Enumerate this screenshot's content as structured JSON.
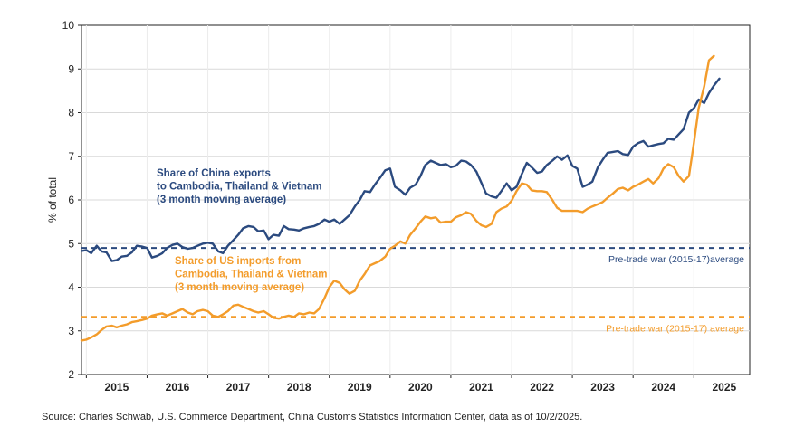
{
  "chart_data": {
    "type": "line",
    "ylabel": "% of total",
    "xlabel": "",
    "ylim": [
      2,
      10
    ],
    "yticks": [
      "2",
      "3",
      "4",
      "5",
      "6",
      "7",
      "8",
      "9",
      "10"
    ],
    "year_labels": [
      "2015",
      "2016",
      "2017",
      "2018",
      "2019",
      "2020",
      "2021",
      "2022",
      "2023",
      "2024",
      "2025"
    ],
    "grid": true,
    "series": [
      {
        "name": "Share of China exports to Cambodia, Thailand & Vietnam (3 month moving average)",
        "color": "#2b4a7f",
        "label_lines": [
          "Share of China exports",
          "to Cambodia, Thailand & Vietnam",
          "(3 month moving average)"
        ],
        "points": [
          [
            2014.92,
            4.83
          ],
          [
            2015.0,
            4.85
          ],
          [
            2015.08,
            4.78
          ],
          [
            2015.17,
            4.95
          ],
          [
            2015.25,
            4.82
          ],
          [
            2015.33,
            4.8
          ],
          [
            2015.42,
            4.6
          ],
          [
            2015.5,
            4.62
          ],
          [
            2015.58,
            4.7
          ],
          [
            2015.67,
            4.72
          ],
          [
            2015.75,
            4.8
          ],
          [
            2015.83,
            4.95
          ],
          [
            2015.92,
            4.93
          ],
          [
            2016.0,
            4.9
          ],
          [
            2016.08,
            4.68
          ],
          [
            2016.17,
            4.72
          ],
          [
            2016.25,
            4.78
          ],
          [
            2016.33,
            4.9
          ],
          [
            2016.42,
            4.97
          ],
          [
            2016.5,
            5.0
          ],
          [
            2016.58,
            4.92
          ],
          [
            2016.67,
            4.88
          ],
          [
            2016.75,
            4.9
          ],
          [
            2016.83,
            4.95
          ],
          [
            2016.92,
            5.0
          ],
          [
            2017.0,
            5.02
          ],
          [
            2017.08,
            5.0
          ],
          [
            2017.17,
            4.82
          ],
          [
            2017.25,
            4.78
          ],
          [
            2017.33,
            4.95
          ],
          [
            2017.42,
            5.08
          ],
          [
            2017.5,
            5.2
          ],
          [
            2017.58,
            5.35
          ],
          [
            2017.67,
            5.4
          ],
          [
            2017.75,
            5.38
          ],
          [
            2017.83,
            5.28
          ],
          [
            2017.92,
            5.3
          ],
          [
            2018.0,
            5.1
          ],
          [
            2018.08,
            5.2
          ],
          [
            2018.17,
            5.18
          ],
          [
            2018.25,
            5.4
          ],
          [
            2018.33,
            5.33
          ],
          [
            2018.42,
            5.32
          ],
          [
            2018.5,
            5.3
          ],
          [
            2018.58,
            5.35
          ],
          [
            2018.67,
            5.38
          ],
          [
            2018.75,
            5.4
          ],
          [
            2018.83,
            5.45
          ],
          [
            2018.92,
            5.55
          ],
          [
            2019.0,
            5.5
          ],
          [
            2019.08,
            5.55
          ],
          [
            2019.17,
            5.45
          ],
          [
            2019.25,
            5.55
          ],
          [
            2019.33,
            5.65
          ],
          [
            2019.42,
            5.85
          ],
          [
            2019.5,
            6.0
          ],
          [
            2019.58,
            6.2
          ],
          [
            2019.67,
            6.18
          ],
          [
            2019.75,
            6.35
          ],
          [
            2019.83,
            6.5
          ],
          [
            2019.92,
            6.68
          ],
          [
            2020.0,
            6.72
          ],
          [
            2020.08,
            6.3
          ],
          [
            2020.17,
            6.22
          ],
          [
            2020.25,
            6.12
          ],
          [
            2020.33,
            6.28
          ],
          [
            2020.42,
            6.35
          ],
          [
            2020.5,
            6.55
          ],
          [
            2020.58,
            6.8
          ],
          [
            2020.67,
            6.9
          ],
          [
            2020.75,
            6.85
          ],
          [
            2020.83,
            6.8
          ],
          [
            2020.92,
            6.82
          ],
          [
            2021.0,
            6.75
          ],
          [
            2021.08,
            6.78
          ],
          [
            2021.17,
            6.9
          ],
          [
            2021.25,
            6.88
          ],
          [
            2021.33,
            6.8
          ],
          [
            2021.42,
            6.65
          ],
          [
            2021.5,
            6.4
          ],
          [
            2021.58,
            6.15
          ],
          [
            2021.67,
            6.08
          ],
          [
            2021.75,
            6.05
          ],
          [
            2021.83,
            6.2
          ],
          [
            2021.92,
            6.38
          ],
          [
            2022.0,
            6.22
          ],
          [
            2022.08,
            6.3
          ],
          [
            2022.17,
            6.6
          ],
          [
            2022.25,
            6.85
          ],
          [
            2022.33,
            6.75
          ],
          [
            2022.42,
            6.62
          ],
          [
            2022.5,
            6.65
          ],
          [
            2022.58,
            6.8
          ],
          [
            2022.67,
            6.9
          ],
          [
            2022.75,
            7.0
          ],
          [
            2022.83,
            6.92
          ],
          [
            2022.92,
            7.02
          ],
          [
            2023.0,
            6.78
          ],
          [
            2023.08,
            6.72
          ],
          [
            2023.17,
            6.3
          ],
          [
            2023.25,
            6.35
          ],
          [
            2023.33,
            6.42
          ],
          [
            2023.42,
            6.75
          ],
          [
            2023.5,
            6.92
          ],
          [
            2023.58,
            7.08
          ],
          [
            2023.67,
            7.1
          ],
          [
            2023.75,
            7.12
          ],
          [
            2023.83,
            7.05
          ],
          [
            2023.92,
            7.03
          ],
          [
            2024.0,
            7.22
          ],
          [
            2024.08,
            7.3
          ],
          [
            2024.17,
            7.35
          ],
          [
            2024.25,
            7.22
          ],
          [
            2024.33,
            7.25
          ],
          [
            2024.42,
            7.28
          ],
          [
            2024.5,
            7.3
          ],
          [
            2024.58,
            7.4
          ],
          [
            2024.67,
            7.38
          ],
          [
            2024.75,
            7.5
          ],
          [
            2024.83,
            7.62
          ],
          [
            2024.92,
            8.0
          ],
          [
            2025.0,
            8.1
          ],
          [
            2025.08,
            8.3
          ],
          [
            2025.17,
            8.22
          ],
          [
            2025.25,
            8.45
          ],
          [
            2025.33,
            8.62
          ],
          [
            2025.42,
            8.78
          ]
        ]
      },
      {
        "name": "Share of US imports from Cambodia, Thailand & Vietnam (3 month moving average)",
        "color": "#f39c2b",
        "label_lines": [
          "Share of US imports from",
          "Cambodia, Thailand & Vietnam",
          "(3 month moving average)"
        ],
        "points": [
          [
            2014.92,
            2.78
          ],
          [
            2015.0,
            2.8
          ],
          [
            2015.08,
            2.85
          ],
          [
            2015.17,
            2.92
          ],
          [
            2015.25,
            3.02
          ],
          [
            2015.33,
            3.1
          ],
          [
            2015.42,
            3.12
          ],
          [
            2015.5,
            3.08
          ],
          [
            2015.58,
            3.12
          ],
          [
            2015.67,
            3.15
          ],
          [
            2015.75,
            3.2
          ],
          [
            2015.83,
            3.22
          ],
          [
            2015.92,
            3.25
          ],
          [
            2016.0,
            3.28
          ],
          [
            2016.08,
            3.35
          ],
          [
            2016.17,
            3.38
          ],
          [
            2016.25,
            3.4
          ],
          [
            2016.33,
            3.35
          ],
          [
            2016.42,
            3.4
          ],
          [
            2016.5,
            3.45
          ],
          [
            2016.58,
            3.5
          ],
          [
            2016.67,
            3.42
          ],
          [
            2016.75,
            3.38
          ],
          [
            2016.83,
            3.45
          ],
          [
            2016.92,
            3.48
          ],
          [
            2017.0,
            3.45
          ],
          [
            2017.08,
            3.35
          ],
          [
            2017.17,
            3.32
          ],
          [
            2017.25,
            3.38
          ],
          [
            2017.33,
            3.45
          ],
          [
            2017.42,
            3.58
          ],
          [
            2017.5,
            3.6
          ],
          [
            2017.58,
            3.55
          ],
          [
            2017.67,
            3.5
          ],
          [
            2017.75,
            3.45
          ],
          [
            2017.83,
            3.42
          ],
          [
            2017.92,
            3.45
          ],
          [
            2018.0,
            3.38
          ],
          [
            2018.08,
            3.3
          ],
          [
            2018.17,
            3.28
          ],
          [
            2018.25,
            3.32
          ],
          [
            2018.33,
            3.35
          ],
          [
            2018.42,
            3.32
          ],
          [
            2018.5,
            3.4
          ],
          [
            2018.58,
            3.38
          ],
          [
            2018.67,
            3.42
          ],
          [
            2018.75,
            3.4
          ],
          [
            2018.83,
            3.5
          ],
          [
            2018.92,
            3.75
          ],
          [
            2019.0,
            4.0
          ],
          [
            2019.08,
            4.15
          ],
          [
            2019.17,
            4.1
          ],
          [
            2019.25,
            3.95
          ],
          [
            2019.33,
            3.85
          ],
          [
            2019.42,
            3.92
          ],
          [
            2019.5,
            4.15
          ],
          [
            2019.58,
            4.3
          ],
          [
            2019.67,
            4.5
          ],
          [
            2019.75,
            4.55
          ],
          [
            2019.83,
            4.6
          ],
          [
            2019.92,
            4.7
          ],
          [
            2020.0,
            4.88
          ],
          [
            2020.08,
            4.95
          ],
          [
            2020.17,
            5.05
          ],
          [
            2020.25,
            5.0
          ],
          [
            2020.33,
            5.2
          ],
          [
            2020.42,
            5.35
          ],
          [
            2020.5,
            5.5
          ],
          [
            2020.58,
            5.62
          ],
          [
            2020.67,
            5.58
          ],
          [
            2020.75,
            5.6
          ],
          [
            2020.83,
            5.48
          ],
          [
            2020.92,
            5.5
          ],
          [
            2021.0,
            5.5
          ],
          [
            2021.08,
            5.6
          ],
          [
            2021.17,
            5.65
          ],
          [
            2021.25,
            5.72
          ],
          [
            2021.33,
            5.68
          ],
          [
            2021.42,
            5.52
          ],
          [
            2021.5,
            5.42
          ],
          [
            2021.58,
            5.38
          ],
          [
            2021.67,
            5.45
          ],
          [
            2021.75,
            5.72
          ],
          [
            2021.83,
            5.8
          ],
          [
            2021.92,
            5.85
          ],
          [
            2022.0,
            5.98
          ],
          [
            2022.08,
            6.2
          ],
          [
            2022.17,
            6.38
          ],
          [
            2022.25,
            6.35
          ],
          [
            2022.33,
            6.22
          ],
          [
            2022.42,
            6.2
          ],
          [
            2022.5,
            6.2
          ],
          [
            2022.58,
            6.18
          ],
          [
            2022.67,
            6.0
          ],
          [
            2022.75,
            5.82
          ],
          [
            2022.83,
            5.75
          ],
          [
            2022.92,
            5.75
          ],
          [
            2023.0,
            5.75
          ],
          [
            2023.08,
            5.75
          ],
          [
            2023.17,
            5.72
          ],
          [
            2023.25,
            5.8
          ],
          [
            2023.33,
            5.85
          ],
          [
            2023.42,
            5.9
          ],
          [
            2023.5,
            5.95
          ],
          [
            2023.58,
            6.05
          ],
          [
            2023.67,
            6.15
          ],
          [
            2023.75,
            6.25
          ],
          [
            2023.83,
            6.28
          ],
          [
            2023.92,
            6.22
          ],
          [
            2024.0,
            6.3
          ],
          [
            2024.08,
            6.35
          ],
          [
            2024.17,
            6.42
          ],
          [
            2024.25,
            6.48
          ],
          [
            2024.33,
            6.38
          ],
          [
            2024.42,
            6.5
          ],
          [
            2024.5,
            6.72
          ],
          [
            2024.58,
            6.82
          ],
          [
            2024.67,
            6.75
          ],
          [
            2024.75,
            6.55
          ],
          [
            2024.83,
            6.42
          ],
          [
            2024.92,
            6.55
          ],
          [
            2025.0,
            7.3
          ],
          [
            2025.08,
            8.1
          ],
          [
            2025.17,
            8.6
          ],
          [
            2025.25,
            9.2
          ],
          [
            2025.33,
            9.3
          ]
        ]
      }
    ],
    "reference_lines": [
      {
        "value": 4.9,
        "color": "#2b4a7f",
        "label": "Pre-trade war (2015-17)average"
      },
      {
        "value": 3.32,
        "color": "#f39c2b",
        "label": "Pre-trade war (2015-17) average"
      }
    ]
  },
  "source": "Source: Charles Schwab, U.S. Commerce Department, China Customs Statistics Information Center, data as of 10/2/2025."
}
